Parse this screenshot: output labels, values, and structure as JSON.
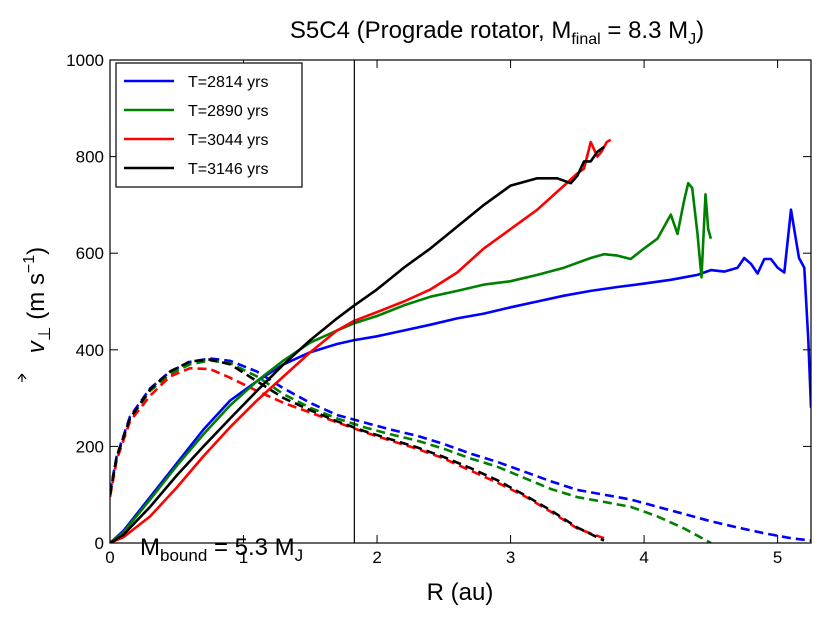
{
  "chart_data": {
    "type": "line",
    "title": {
      "prefix": "S5C4 (Prograde rotator,  M",
      "sub": "final",
      "mid": " = 8.3 M",
      "sub2": "J",
      "suffix": ")"
    },
    "xlabel": "R (au)",
    "ylabel": {
      "symbol": "v",
      "sub": "⊥",
      "unit_open": "  (m s",
      "sup": "−1",
      "unit_close": ")"
    },
    "xlim": [
      0,
      5.25
    ],
    "ylim": [
      0,
      1000
    ],
    "xticks": [
      0,
      1,
      2,
      3,
      4,
      5
    ],
    "yticks": [
      0,
      200,
      400,
      600,
      800,
      1000
    ],
    "vline_x": 1.83,
    "annotation": {
      "prefix": "M",
      "sub": "bound",
      "mid": " = 5.3 M",
      "sub2": "J"
    },
    "legend_position": "upper-left",
    "series": [
      {
        "name": "T=2814 yrs",
        "color": "#0000ff",
        "solid": [
          [
            0,
            0
          ],
          [
            0.1,
            25
          ],
          [
            0.3,
            95
          ],
          [
            0.5,
            165
          ],
          [
            0.7,
            235
          ],
          [
            0.9,
            295
          ],
          [
            1.1,
            335
          ],
          [
            1.3,
            370
          ],
          [
            1.5,
            395
          ],
          [
            1.7,
            412
          ],
          [
            1.83,
            420
          ],
          [
            2.0,
            428
          ],
          [
            2.2,
            440
          ],
          [
            2.4,
            452
          ],
          [
            2.6,
            465
          ],
          [
            2.8,
            475
          ],
          [
            3.0,
            488
          ],
          [
            3.2,
            500
          ],
          [
            3.4,
            512
          ],
          [
            3.6,
            522
          ],
          [
            3.8,
            530
          ],
          [
            4.0,
            537
          ],
          [
            4.2,
            545
          ],
          [
            4.4,
            555
          ],
          [
            4.5,
            565
          ],
          [
            4.6,
            562
          ],
          [
            4.7,
            570
          ],
          [
            4.75,
            590
          ],
          [
            4.8,
            578
          ],
          [
            4.85,
            558
          ],
          [
            4.9,
            588
          ],
          [
            4.95,
            588
          ],
          [
            5.0,
            570
          ],
          [
            5.05,
            560
          ],
          [
            5.1,
            690
          ],
          [
            5.13,
            640
          ],
          [
            5.16,
            590
          ],
          [
            5.2,
            570
          ],
          [
            5.23,
            420
          ],
          [
            5.25,
            280
          ]
        ],
        "dashed": [
          [
            0,
            105
          ],
          [
            0.05,
            180
          ],
          [
            0.15,
            262
          ],
          [
            0.3,
            320
          ],
          [
            0.45,
            355
          ],
          [
            0.6,
            375
          ],
          [
            0.75,
            382
          ],
          [
            0.9,
            377
          ],
          [
            1.1,
            355
          ],
          [
            1.3,
            320
          ],
          [
            1.5,
            290
          ],
          [
            1.7,
            265
          ],
          [
            1.9,
            250
          ],
          [
            2.1,
            235
          ],
          [
            2.3,
            222
          ],
          [
            2.5,
            205
          ],
          [
            2.7,
            185
          ],
          [
            2.9,
            168
          ],
          [
            3.1,
            148
          ],
          [
            3.3,
            128
          ],
          [
            3.5,
            110
          ],
          [
            3.7,
            100
          ],
          [
            3.9,
            90
          ],
          [
            4.1,
            75
          ],
          [
            4.3,
            60
          ],
          [
            4.5,
            45
          ],
          [
            4.7,
            32
          ],
          [
            4.9,
            20
          ],
          [
            5.1,
            10
          ],
          [
            5.25,
            5
          ]
        ]
      },
      {
        "name": "T=2890 yrs",
        "color": "#008000",
        "solid": [
          [
            0,
            0
          ],
          [
            0.1,
            22
          ],
          [
            0.3,
            90
          ],
          [
            0.5,
            160
          ],
          [
            0.7,
            225
          ],
          [
            0.9,
            285
          ],
          [
            1.1,
            335
          ],
          [
            1.3,
            378
          ],
          [
            1.5,
            415
          ],
          [
            1.7,
            440
          ],
          [
            1.83,
            455
          ],
          [
            2.0,
            470
          ],
          [
            2.2,
            492
          ],
          [
            2.4,
            510
          ],
          [
            2.6,
            522
          ],
          [
            2.8,
            535
          ],
          [
            3.0,
            542
          ],
          [
            3.2,
            555
          ],
          [
            3.4,
            570
          ],
          [
            3.6,
            590
          ],
          [
            3.7,
            598
          ],
          [
            3.8,
            595
          ],
          [
            3.9,
            588
          ],
          [
            4.0,
            610
          ],
          [
            4.1,
            630
          ],
          [
            4.2,
            680
          ],
          [
            4.25,
            640
          ],
          [
            4.3,
            710
          ],
          [
            4.33,
            745
          ],
          [
            4.36,
            735
          ],
          [
            4.4,
            640
          ],
          [
            4.43,
            550
          ],
          [
            4.46,
            722
          ],
          [
            4.48,
            650
          ],
          [
            4.5,
            630
          ]
        ],
        "dashed": [
          [
            0,
            100
          ],
          [
            0.05,
            178
          ],
          [
            0.15,
            258
          ],
          [
            0.3,
            315
          ],
          [
            0.45,
            350
          ],
          [
            0.6,
            370
          ],
          [
            0.75,
            378
          ],
          [
            0.9,
            372
          ],
          [
            1.1,
            345
          ],
          [
            1.3,
            308
          ],
          [
            1.5,
            280
          ],
          [
            1.7,
            258
          ],
          [
            1.9,
            240
          ],
          [
            2.1,
            225
          ],
          [
            2.3,
            212
          ],
          [
            2.5,
            195
          ],
          [
            2.7,
            175
          ],
          [
            2.9,
            158
          ],
          [
            3.1,
            135
          ],
          [
            3.3,
            112
          ],
          [
            3.5,
            95
          ],
          [
            3.7,
            85
          ],
          [
            3.9,
            75
          ],
          [
            4.1,
            55
          ],
          [
            4.3,
            30
          ],
          [
            4.5,
            0
          ]
        ]
      },
      {
        "name": "T=3044 yrs",
        "color": "#ff0000",
        "solid": [
          [
            0,
            0
          ],
          [
            0.1,
            12
          ],
          [
            0.3,
            55
          ],
          [
            0.5,
            115
          ],
          [
            0.7,
            180
          ],
          [
            0.9,
            240
          ],
          [
            1.1,
            295
          ],
          [
            1.3,
            345
          ],
          [
            1.5,
            395
          ],
          [
            1.7,
            440
          ],
          [
            1.83,
            460
          ],
          [
            2.0,
            478
          ],
          [
            2.2,
            500
          ],
          [
            2.4,
            525
          ],
          [
            2.6,
            560
          ],
          [
            2.8,
            610
          ],
          [
            3.0,
            650
          ],
          [
            3.2,
            690
          ],
          [
            3.4,
            740
          ],
          [
            3.5,
            765
          ],
          [
            3.55,
            775
          ],
          [
            3.6,
            830
          ],
          [
            3.65,
            800
          ],
          [
            3.68,
            810
          ],
          [
            3.72,
            830
          ],
          [
            3.75,
            835
          ]
        ],
        "dashed": [
          [
            0,
            95
          ],
          [
            0.05,
            172
          ],
          [
            0.15,
            252
          ],
          [
            0.3,
            305
          ],
          [
            0.45,
            345
          ],
          [
            0.6,
            362
          ],
          [
            0.75,
            360
          ],
          [
            0.9,
            342
          ],
          [
            1.1,
            315
          ],
          [
            1.3,
            290
          ],
          [
            1.5,
            270
          ],
          [
            1.7,
            250
          ],
          [
            1.9,
            230
          ],
          [
            2.1,
            212
          ],
          [
            2.3,
            195
          ],
          [
            2.5,
            175
          ],
          [
            2.7,
            150
          ],
          [
            2.9,
            125
          ],
          [
            3.1,
            98
          ],
          [
            3.3,
            65
          ],
          [
            3.5,
            30
          ],
          [
            3.7,
            10
          ]
        ]
      },
      {
        "name": "T=3146 yrs",
        "color": "#000000",
        "solid": [
          [
            0,
            0
          ],
          [
            0.1,
            17
          ],
          [
            0.3,
            75
          ],
          [
            0.5,
            140
          ],
          [
            0.7,
            200
          ],
          [
            0.9,
            258
          ],
          [
            1.1,
            315
          ],
          [
            1.3,
            370
          ],
          [
            1.5,
            420
          ],
          [
            1.7,
            465
          ],
          [
            1.83,
            492
          ],
          [
            2.0,
            525
          ],
          [
            2.2,
            570
          ],
          [
            2.4,
            610
          ],
          [
            2.6,
            655
          ],
          [
            2.8,
            700
          ],
          [
            3.0,
            740
          ],
          [
            3.2,
            755
          ],
          [
            3.35,
            755
          ],
          [
            3.45,
            745
          ],
          [
            3.5,
            760
          ],
          [
            3.55,
            790
          ],
          [
            3.6,
            790
          ],
          [
            3.65,
            810
          ],
          [
            3.7,
            820
          ]
        ],
        "dashed": [
          [
            0,
            100
          ],
          [
            0.05,
            178
          ],
          [
            0.15,
            258
          ],
          [
            0.3,
            318
          ],
          [
            0.45,
            355
          ],
          [
            0.6,
            376
          ],
          [
            0.75,
            380
          ],
          [
            0.9,
            370
          ],
          [
            1.1,
            335
          ],
          [
            1.3,
            300
          ],
          [
            1.5,
            275
          ],
          [
            1.7,
            252
          ],
          [
            1.9,
            232
          ],
          [
            2.1,
            215
          ],
          [
            2.3,
            198
          ],
          [
            2.5,
            178
          ],
          [
            2.7,
            155
          ],
          [
            2.9,
            130
          ],
          [
            3.1,
            100
          ],
          [
            3.3,
            68
          ],
          [
            3.5,
            32
          ],
          [
            3.7,
            5
          ]
        ]
      }
    ]
  }
}
